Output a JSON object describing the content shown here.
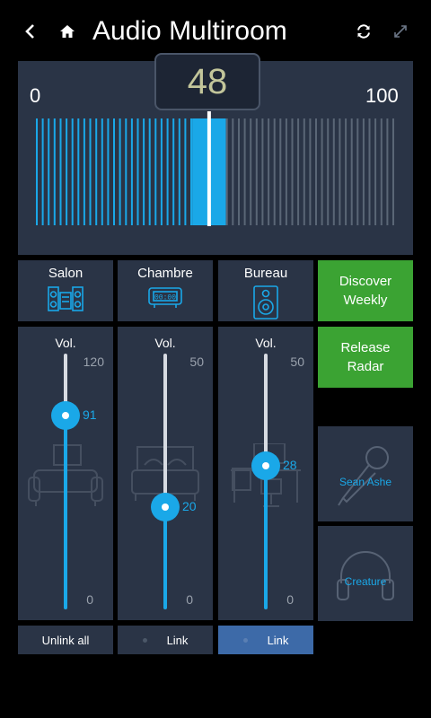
{
  "header": {
    "title": "Audio Multiroom",
    "icons": [
      "back-icon",
      "home-icon",
      "refresh-icon",
      "fullscreen-icon"
    ]
  },
  "master_volume": {
    "value": "48",
    "min_label": "0",
    "max_label": "100",
    "level": 48,
    "max": 100
  },
  "rooms": [
    {
      "name": "Salon",
      "icon": "stereo-icon",
      "vol_label": "Vol.",
      "max": "120",
      "min": "0",
      "value": "91",
      "level_fraction": 0.758,
      "link_label": "Unlink all",
      "art": "sofa"
    },
    {
      "name": "Chambre",
      "icon": "alarm-clock-icon",
      "vol_label": "Vol.",
      "max": "50",
      "min": "0",
      "value": "20",
      "level_fraction": 0.4,
      "link_label": "Link",
      "art": "bed"
    },
    {
      "name": "Bureau",
      "icon": "speaker-icon",
      "vol_label": "Vol.",
      "max": "50",
      "min": "0",
      "value": "28",
      "level_fraction": 0.56,
      "link_label": "Link",
      "art": "desk",
      "link_active": true
    }
  ],
  "playlists": [
    {
      "label_line1": "Discover",
      "label_line2": "Weekly"
    },
    {
      "label_line1": "Release",
      "label_line2": "Radar"
    }
  ],
  "artists": [
    {
      "name": "Sean Ashe",
      "icon": "microphone-icon"
    },
    {
      "name": "Creature",
      "icon": "headphones-icon"
    }
  ],
  "colors": {
    "accent": "#1aa8e8",
    "tile": "#2a3446",
    "green": "#3ba333",
    "active_link": "#3d6aa8",
    "badge_text": "#c2c59a"
  }
}
